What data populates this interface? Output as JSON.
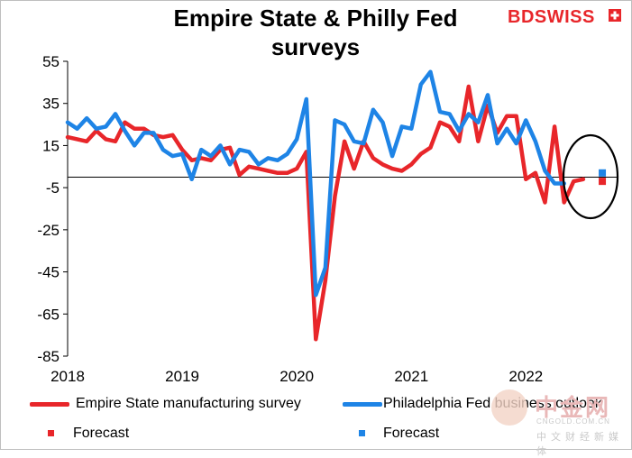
{
  "chart_data": {
    "type": "line",
    "title": "Empire State & Philly Fed surveys",
    "y_ticks": [
      55,
      35,
      15,
      -5,
      -25,
      -45,
      -65,
      -85
    ],
    "x_ticks": [
      "2018",
      "2019",
      "2020",
      "2021",
      "2022"
    ],
    "ylim": [
      -85,
      55
    ],
    "xlim": [
      2018.0,
      2022.8
    ],
    "grid": false,
    "legend_position": "bottom",
    "series": [
      {
        "name": "Empire State manufacturing survey",
        "color": "#e8262a",
        "values": [
          19,
          18,
          17,
          22,
          18,
          17,
          26,
          23,
          23,
          20,
          19,
          20,
          13,
          8,
          9,
          8,
          13,
          14,
          1,
          5,
          4,
          3,
          2,
          2,
          4,
          12,
          -77,
          -49,
          -9,
          17,
          4,
          17,
          9,
          6,
          4,
          3,
          6,
          11,
          14,
          26,
          24,
          17,
          43,
          17,
          34,
          21,
          29,
          29,
          -1,
          2,
          -12,
          24,
          -12,
          -2,
          -1
        ],
        "forecast": -2
      },
      {
        "name": "Philadelphia Fed business outlook",
        "color": "#1e84e6",
        "values": [
          26,
          23,
          28,
          23,
          24,
          30,
          22,
          15,
          21,
          21,
          13,
          10,
          11,
          -1,
          13,
          10,
          15,
          6,
          13,
          12,
          6,
          9,
          8,
          11,
          18,
          37,
          -56,
          -43,
          27,
          25,
          17,
          16,
          32,
          26,
          10,
          24,
          23,
          44,
          50,
          31,
          30,
          22,
          30,
          26,
          39,
          16,
          23,
          16,
          27,
          17,
          3,
          -3,
          -3
        ],
        "forecast": 2
      }
    ],
    "annotations": [
      "forecast ellipse highlight"
    ]
  },
  "legend": {
    "empire": "Empire State manufacturing survey",
    "philly": "Philadelphia Fed business outlook",
    "empire_forecast": "Forecast",
    "philly_forecast": "Forecast"
  },
  "brand": {
    "logo_left": "BD",
    "logo_right": "SWISS"
  },
  "watermark": {
    "name": "中金网",
    "url": "CNGOLD.COM.CN",
    "sub": "中文财经新媒体"
  }
}
